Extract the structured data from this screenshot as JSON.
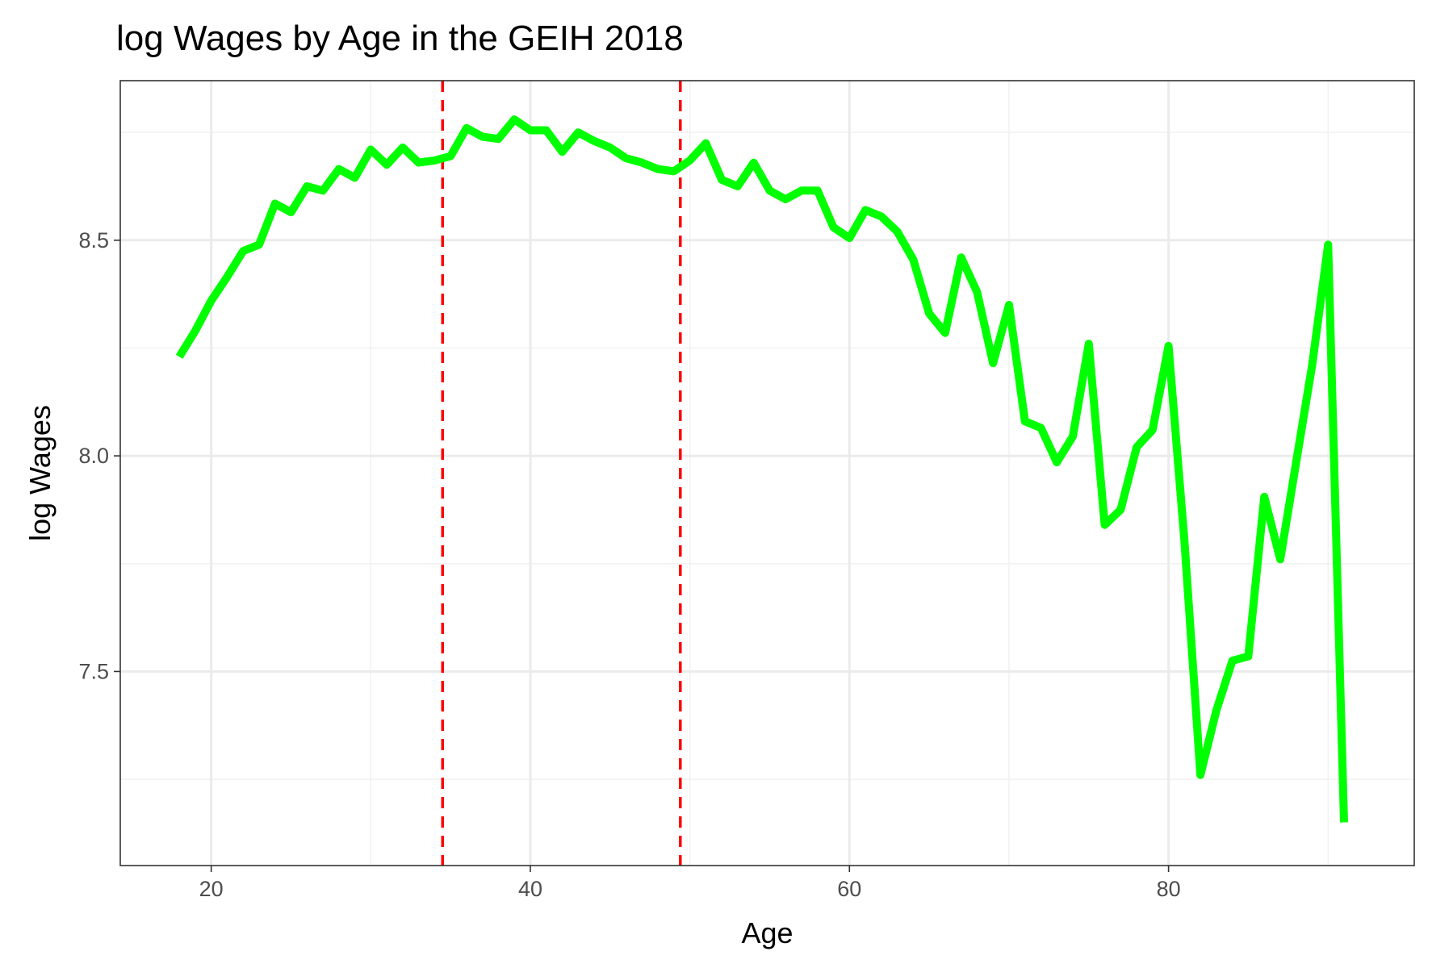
{
  "chart_data": {
    "type": "line",
    "title": "log Wages by Age in the GEIH 2018",
    "xlabel": "Age",
    "ylabel": "log Wages",
    "xlim": [
      14.3,
      95.4
    ],
    "ylim": [
      7.05,
      8.87
    ],
    "x_ticks": [
      20,
      40,
      60,
      80
    ],
    "y_ticks": [
      7.5,
      8.0,
      8.5
    ],
    "x_tick_labels": [
      "20",
      "40",
      "60",
      "80"
    ],
    "y_tick_labels": [
      "7.5",
      "8.0",
      "8.5"
    ],
    "grid": true,
    "legend": "none",
    "line_color": "#00ff00",
    "vline_color": "#ff0000",
    "vlines": [
      34.5,
      49.4
    ],
    "series": [
      {
        "x": [
          18,
          19,
          20,
          21,
          22,
          23,
          24,
          25,
          26,
          27,
          28,
          29,
          30,
          31,
          32,
          33,
          34,
          35,
          36,
          37,
          38,
          39,
          40,
          41,
          42,
          43,
          44,
          45,
          46,
          47,
          48,
          49,
          50,
          51,
          52,
          53,
          54,
          55,
          56,
          57,
          58,
          59,
          60,
          61,
          62,
          63,
          64,
          65,
          66,
          67,
          68,
          69,
          70,
          71,
          72,
          73,
          74,
          75,
          76,
          77,
          78,
          79,
          80,
          81,
          82,
          83,
          84,
          85,
          86,
          87,
          88,
          89,
          90,
          91
        ],
        "values": [
          8.23,
          8.29,
          8.36,
          8.415,
          8.475,
          8.49,
          8.585,
          8.565,
          8.625,
          8.615,
          8.665,
          8.645,
          8.71,
          8.675,
          8.715,
          8.68,
          8.685,
          8.695,
          8.76,
          8.74,
          8.735,
          8.78,
          8.755,
          8.755,
          8.705,
          8.75,
          8.73,
          8.715,
          8.69,
          8.68,
          8.665,
          8.66,
          8.685,
          8.725,
          8.64,
          8.625,
          8.68,
          8.615,
          8.595,
          8.615,
          8.615,
          8.53,
          8.505,
          8.57,
          8.555,
          8.52,
          8.455,
          8.33,
          8.285,
          8.46,
          8.38,
          8.215,
          8.35,
          8.08,
          8.065,
          7.985,
          8.045,
          8.26,
          7.84,
          7.875,
          8.02,
          8.06,
          8.255,
          7.8,
          7.26,
          7.41,
          7.525,
          7.535,
          7.905,
          7.76,
          7.985,
          8.21,
          8.49,
          7.15
        ]
      }
    ]
  }
}
